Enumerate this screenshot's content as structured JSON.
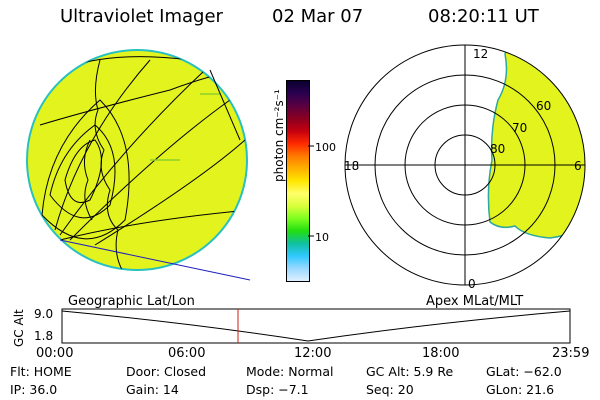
{
  "header": {
    "instrument": "Ultraviolet Imager",
    "date": "02 Mar 07",
    "time": "08:20:11 UT"
  },
  "colorbar": {
    "unit_label": "photon cm⁻²s⁻¹",
    "ticks": [
      "100",
      "10"
    ],
    "stops": [
      "#0b0030",
      "#2a0050",
      "#5a0040",
      "#8a0020",
      "#c40010",
      "#ff2a00",
      "#ff7a00",
      "#ffb000",
      "#ffe600",
      "#ffff6a",
      "#d9ff3a",
      "#7eff20",
      "#22dd10",
      "#10c0a0",
      "#30c8ff",
      "#9ad8ff",
      "#e0f0ff"
    ]
  },
  "geo_panel": {
    "label": "Geographic Lat/Lon",
    "fill_color": "#e2f31e",
    "edge_color": "#28c0c0"
  },
  "polar_panel": {
    "label": "Apex MLat/MLT",
    "mlt_labels": {
      "top": "12",
      "left": "18",
      "right": "6",
      "bottom": "0"
    },
    "lat_labels": [
      "80",
      "70",
      "60"
    ],
    "fill_color": "#e2f31e"
  },
  "altitude_plot": {
    "ylabel": "GC Alt",
    "yticks": [
      "9.0",
      "1.8"
    ],
    "xticks": [
      "00:00",
      "06:00",
      "12:00",
      "18:00",
      "23:59"
    ],
    "marker_color": "#d02010"
  },
  "info": {
    "filter": "Flt: HOME",
    "door": "Door: Closed",
    "mode": "Mode: Normal",
    "gc_alt": "GC Alt: 5.9 Re",
    "glat": "GLat: −62.0",
    "ip": "IP: 36.0",
    "gain": "Gain: 14",
    "dsp": "Dsp:    −7.1",
    "seq": "Seq: 20",
    "glon": "GLon:  21.6"
  }
}
